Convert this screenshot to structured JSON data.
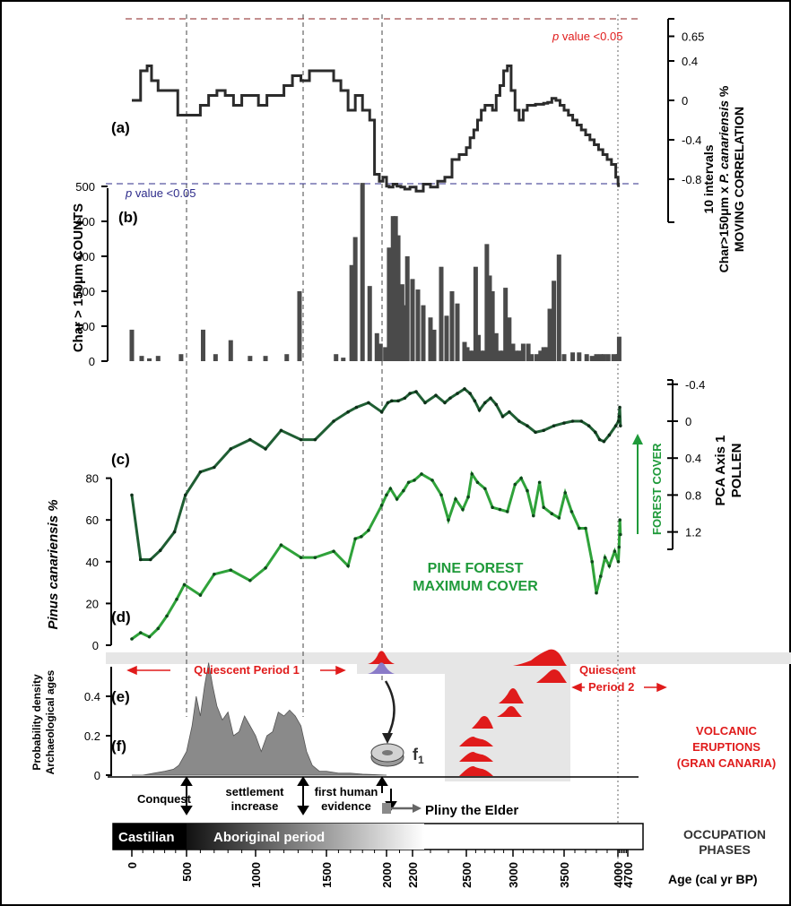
{
  "figure": {
    "frame_color": "#000000"
  },
  "colors": {
    "correlation_line": "#2b2b2b",
    "charcoal_bar": "#4a4a4a",
    "pca_line": "#1f5e33",
    "pinus_line": "#2fa23a",
    "green_text": "#1f9a3a",
    "red": "#e01b1b",
    "blue_dash": "#2d2b8a",
    "red_dash": "#8a1f1f",
    "density_fill": "#8a8a8a",
    "eruption_box": "#e6e6e6",
    "purple": "#8a7bc8"
  },
  "panel_labels": {
    "a": "(a)",
    "b": "(b)",
    "c": "(c)",
    "d": "(d)",
    "e": "(e)",
    "f": "(f)"
  },
  "annotations": {
    "pvalue_prefix": "p",
    "pvalue_suffix": " value <0.05",
    "pine_forest": [
      "PINE FOREST",
      "MAXIMUM  COVER"
    ],
    "forest_cover": "FOREST COVER",
    "quiescent1": "Quiescent Period 1",
    "quiescent2_line1": "Quiescent",
    "quiescent2_line2": "Period 2",
    "volcanic": [
      "VOLCANIC",
      "ERUPTIONS",
      "(GRAN CANARIA)"
    ],
    "f1": "f",
    "f1_sub": "1",
    "conquest": "Conquest",
    "settlement": [
      "settlement",
      "increase"
    ],
    "first_human": [
      "first human",
      "evidence"
    ],
    "pliny": "Pliny the Elder",
    "castilian": "Castilian",
    "aboriginal": "Aboriginal period",
    "occupation": [
      "OCCUPATION",
      "PHASES"
    ],
    "age_label": "Age (cal yr BP)"
  },
  "chart_data": [
    {
      "panel": "a",
      "type": "line",
      "ylabel": [
        "10 intervals",
        "Char>150μm x P. canariensis %",
        "MOVING CORRELATION"
      ],
      "ylabel_italic": "P. canariensis",
      "ytick_labels": [
        "0.65",
        "0.4",
        "0",
        "-0.4",
        "-0.8"
      ],
      "yticks": [
        0.65,
        0.4,
        0,
        -0.4,
        -0.8
      ],
      "threshold": 0.65,
      "step": true,
      "x": [
        0,
        80,
        140,
        180,
        240,
        300,
        360,
        420,
        480,
        540,
        600,
        660,
        720,
        780,
        840,
        900,
        960,
        1020,
        1080,
        1140,
        1200,
        1260,
        1320,
        1380,
        1440,
        1500,
        1560,
        1620,
        1680,
        1740,
        1800,
        1860,
        1900,
        1940,
        1970,
        2000,
        2020,
        2050,
        2080,
        2110,
        2140,
        2180,
        2220,
        2260,
        2300,
        2340,
        2380,
        2420,
        2460,
        2500,
        2540,
        2580,
        2620,
        2660,
        2700,
        2740,
        2780,
        2820,
        2860,
        2900,
        2940,
        2980,
        3020,
        3060,
        3100,
        3140,
        3180,
        3220,
        3260,
        3300,
        3340,
        3380,
        3420,
        3460,
        3500,
        3540,
        3580,
        3620,
        3660,
        3700,
        3740,
        3780,
        3820,
        3860,
        3900,
        3940,
        3980,
        4010,
        4040
      ],
      "y": [
        0,
        0.3,
        0.35,
        0.2,
        0.1,
        0.1,
        0.1,
        -0.15,
        -0.15,
        -0.15,
        -0.05,
        0.05,
        0.1,
        0.05,
        -0.05,
        0.05,
        0.05,
        -0.05,
        0.05,
        0.05,
        0.15,
        0.25,
        0.2,
        0.3,
        0.3,
        0.3,
        0.2,
        0.1,
        -0.1,
        0.05,
        -0.1,
        -0.2,
        -0.75,
        -0.82,
        -0.78,
        -0.87,
        -0.88,
        -0.85,
        -0.87,
        -0.88,
        -0.9,
        -0.88,
        -0.92,
        -0.85,
        -0.88,
        -0.82,
        -0.78,
        -0.6,
        -0.55,
        -0.48,
        -0.38,
        -0.3,
        -0.2,
        -0.1,
        -0.05,
        -0.05,
        -0.1,
        0.05,
        0.15,
        0.3,
        0.35,
        0.1,
        -0.1,
        -0.2,
        -0.1,
        -0.05,
        -0.05,
        -0.04,
        -0.04,
        -0.03,
        -0.02,
        0.02,
        0.0,
        -0.05,
        -0.1,
        -0.15,
        -0.2,
        -0.25,
        -0.3,
        -0.35,
        -0.4,
        -0.45,
        -0.5,
        -0.55,
        -0.6,
        -0.65,
        -0.78,
        -0.85,
        -0.88
      ]
    },
    {
      "panel": "b",
      "type": "bar",
      "ylabel": "Char > 150μm COUNTS",
      "ytick_labels": [
        "500",
        "400",
        "300",
        "200",
        "100",
        "0"
      ],
      "yticks": [
        500,
        400,
        300,
        200,
        100,
        0
      ],
      "ylim": [
        0,
        500
      ],
      "x": [
        0,
        90,
        160,
        240,
        450,
        620,
        710,
        820,
        960,
        1070,
        1220,
        1310,
        1580,
        1640,
        1710,
        1740,
        1800,
        1860,
        1920,
        1950,
        1990,
        2020,
        2050,
        2070,
        2090,
        2120,
        2140,
        2160,
        2200,
        2230,
        2260,
        2300,
        2320,
        2360,
        2390,
        2420,
        2450,
        2490,
        2510,
        2540,
        2570,
        2600,
        2630,
        2660,
        2690,
        2720,
        2750,
        2780,
        2820,
        2860,
        2890,
        2920,
        2960,
        3000,
        3030,
        3060,
        3100,
        3150,
        3180,
        3230,
        3270,
        3300,
        3330,
        3360,
        3400,
        3450,
        3500,
        3580,
        3640,
        3710,
        3760,
        3800,
        3840,
        3870,
        3910,
        3960,
        4000,
        4030,
        4060,
        4090
      ],
      "values": [
        90,
        15,
        8,
        15,
        20,
        90,
        20,
        60,
        15,
        15,
        20,
        200,
        20,
        10,
        275,
        355,
        510,
        215,
        80,
        50,
        40,
        325,
        415,
        415,
        360,
        220,
        160,
        300,
        235,
        205,
        160,
        125,
        90,
        270,
        130,
        200,
        165,
        55,
        40,
        30,
        30,
        270,
        75,
        30,
        30,
        335,
        245,
        200,
        80,
        30,
        30,
        210,
        125,
        50,
        30,
        30,
        50,
        50,
        20,
        20,
        30,
        40,
        40,
        150,
        230,
        305,
        20,
        25,
        25,
        20,
        15,
        20,
        20,
        20,
        20,
        20,
        20,
        20,
        20,
        70
      ],
      "values_note": null
    },
    {
      "panel": "c",
      "type": "line",
      "ylabel": [
        "PCA Axis 1",
        "POLLEN"
      ],
      "ytick_labels": [
        "-0.4",
        "0",
        "0.4",
        "0.8",
        "1.2"
      ],
      "yticks": [
        -0.4,
        0,
        0.4,
        0.8,
        1.2
      ],
      "inverted": true,
      "x": [
        0,
        80,
        170,
        260,
        390,
        490,
        600,
        700,
        820,
        960,
        1070,
        1180,
        1320,
        1420,
        1560,
        1680,
        1750,
        1850,
        1960,
        2010,
        2040,
        2090,
        2140,
        2180,
        2220,
        2270,
        2330,
        2380,
        2410,
        2450,
        2490,
        2540,
        2590,
        2640,
        2700,
        2760,
        2820,
        2890,
        2960,
        3060,
        3140,
        3220,
        3300,
        3400,
        3500,
        3580,
        3660,
        3730,
        3790,
        3830,
        3870,
        3920,
        3980,
        4040,
        4080,
        4130,
        4180
      ],
      "y": [
        0.8,
        1.5,
        1.5,
        1.4,
        1.2,
        0.8,
        0.55,
        0.5,
        0.3,
        0.2,
        0.3,
        0.1,
        0.2,
        0.2,
        0.0,
        -0.1,
        -0.15,
        -0.2,
        -0.1,
        -0.2,
        -0.22,
        -0.22,
        -0.25,
        -0.3,
        -0.32,
        -0.2,
        -0.28,
        -0.2,
        -0.25,
        -0.3,
        -0.35,
        -0.3,
        -0.22,
        -0.12,
        -0.2,
        -0.25,
        -0.18,
        -0.05,
        -0.1,
        0.0,
        0.05,
        0.12,
        0.1,
        0.05,
        0.02,
        0.0,
        0.0,
        0.05,
        0.12,
        0.2,
        0.22,
        0.15,
        0.05,
        0.0,
        -0.05,
        -0.15,
        0.05
      ]
    },
    {
      "panel": "d",
      "type": "line",
      "ylabel": "Pinus canariensis %",
      "ytick_labels": [
        "80",
        "60",
        "40",
        "20",
        "0"
      ],
      "yticks": [
        80,
        60,
        40,
        20,
        0
      ],
      "ylim": [
        0,
        80
      ],
      "x": [
        0,
        80,
        160,
        240,
        320,
        410,
        480,
        600,
        700,
        820,
        960,
        1070,
        1180,
        1320,
        1420,
        1560,
        1680,
        1740,
        1790,
        1850,
        1960,
        2000,
        2030,
        2080,
        2130,
        2170,
        2210,
        2250,
        2310,
        2360,
        2400,
        2440,
        2480,
        2520,
        2560,
        2620,
        2700,
        2780,
        2860,
        2940,
        3020,
        3080,
        3140,
        3200,
        3260,
        3300,
        3380,
        3450,
        3510,
        3570,
        3640,
        3700,
        3760,
        3800,
        3840,
        3880,
        3920,
        3970,
        4030,
        4080,
        4140,
        4180
      ],
      "y": [
        3,
        6,
        4,
        8,
        14,
        22,
        29,
        24,
        34,
        36,
        31,
        37,
        48,
        42,
        42,
        45,
        38,
        51,
        52,
        55,
        67,
        72,
        75,
        70,
        74,
        78,
        79,
        82,
        79,
        72,
        60,
        70,
        65,
        71,
        82,
        78,
        75,
        66,
        65,
        64,
        77,
        80,
        74,
        62,
        78,
        66,
        63,
        61,
        73,
        64,
        56,
        56,
        40,
        25,
        33,
        42,
        38,
        45,
        40,
        47,
        60,
        53
      ]
    },
    {
      "panel": "e-f",
      "type": "area",
      "ylabel": [
        "Probability density",
        "Archaeological ages"
      ],
      "ytick_labels": [
        "0.4",
        "0.2",
        "0"
      ],
      "yticks": [
        0.4,
        0.2,
        0
      ],
      "ylim": [
        0,
        0.55
      ],
      "x": [
        0,
        100,
        200,
        300,
        380,
        430,
        460,
        500,
        540,
        570,
        600,
        630,
        660,
        690,
        720,
        760,
        800,
        840,
        880,
        920,
        960,
        1000,
        1040,
        1080,
        1120,
        1160,
        1200,
        1240,
        1280,
        1320,
        1360,
        1400,
        1450,
        1500,
        1600,
        1700,
        1800,
        1900,
        2000
      ],
      "y": [
        0.0,
        0.0,
        0.01,
        0.02,
        0.03,
        0.05,
        0.08,
        0.12,
        0.25,
        0.4,
        0.3,
        0.45,
        0.57,
        0.45,
        0.35,
        0.28,
        0.32,
        0.2,
        0.22,
        0.3,
        0.25,
        0.2,
        0.12,
        0.2,
        0.22,
        0.32,
        0.3,
        0.33,
        0.3,
        0.25,
        0.12,
        0.05,
        0.02,
        0.02,
        0.01,
        0.01,
        0.005,
        0.003,
        0.0
      ]
    }
  ],
  "x_axis": {
    "label": "Age (cal yr BP)",
    "ticks": [
      "0",
      "500",
      "1000",
      "1500",
      "2000",
      "2200",
      "2500",
      "3000",
      "3500",
      "4000",
      "4700"
    ]
  }
}
